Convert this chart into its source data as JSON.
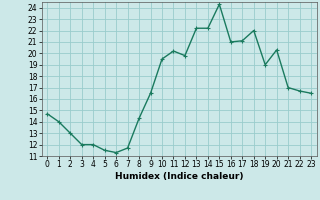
{
  "x": [
    0,
    1,
    2,
    3,
    4,
    5,
    6,
    7,
    8,
    9,
    10,
    11,
    12,
    13,
    14,
    15,
    16,
    17,
    18,
    19,
    20,
    21,
    22,
    23
  ],
  "y": [
    14.7,
    14.0,
    13.0,
    12.0,
    12.0,
    11.5,
    11.3,
    11.7,
    14.3,
    16.5,
    19.5,
    20.2,
    19.8,
    22.2,
    22.2,
    24.3,
    21.0,
    21.1,
    22.0,
    19.0,
    20.3,
    17.0,
    16.7,
    16.5
  ],
  "line_color": "#1a7a5e",
  "marker": "+",
  "marker_size": 3,
  "bg_color": "#cce8e8",
  "grid_color": "#99cccc",
  "xlabel": "Humidex (Indice chaleur)",
  "xlim": [
    -0.5,
    23.5
  ],
  "ylim": [
    11,
    24.5
  ],
  "yticks": [
    11,
    12,
    13,
    14,
    15,
    16,
    17,
    18,
    19,
    20,
    21,
    22,
    23,
    24
  ],
  "xticks": [
    0,
    1,
    2,
    3,
    4,
    5,
    6,
    7,
    8,
    9,
    10,
    11,
    12,
    13,
    14,
    15,
    16,
    17,
    18,
    19,
    20,
    21,
    22,
    23
  ],
  "tick_label_size": 5.5,
  "xlabel_size": 6.5,
  "line_width": 1.0
}
